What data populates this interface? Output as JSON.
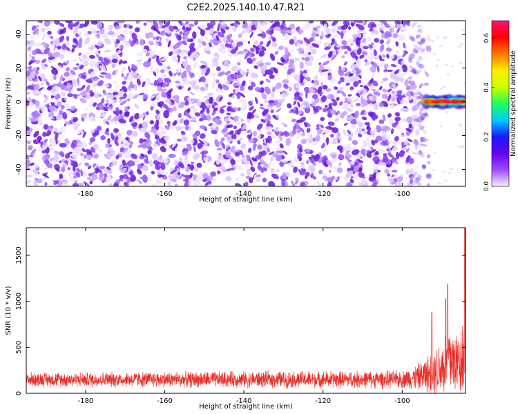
{
  "figure_title": "C2E2.2025.140.10.47.R21",
  "colors": {
    "snr_line": "#e8302a",
    "axis": "#000000"
  },
  "chart_data": [
    {
      "type": "heatmap",
      "xlabel": "Height of straight line (km)",
      "ylabel": "Frequency (Hz)",
      "xlim": [
        -195,
        -84
      ],
      "ylim": [
        -50,
        48
      ],
      "x_ticks": [
        -180,
        -160,
        -140,
        -120,
        -100
      ],
      "y_ticks": [
        -40,
        -20,
        0,
        20,
        40
      ],
      "colorbar": {
        "label": "Normalized spectral amplitude",
        "range": [
          0.0,
          0.67
        ],
        "ticks": [
          0.0,
          0.2,
          0.4,
          0.6
        ],
        "tick_labels": [
          "0.0",
          "0.2",
          "0.4",
          "0.6"
        ],
        "colormap": [
          "#f4efff",
          "#9a4cff",
          "#6600ee",
          "#1a1aff",
          "#00ccff",
          "#22ff55",
          "#ccff00",
          "#ffee00",
          "#ff7700",
          "#ff0000",
          "#ff1177"
        ]
      },
      "noise_region": {
        "x_range": [
          -195,
          -95
        ],
        "amplitude_range": [
          0.0,
          0.12
        ]
      },
      "signal": {
        "x_range": [
          -95,
          -84
        ],
        "frequency_hz": 0,
        "peak_amplitude": 0.67
      }
    },
    {
      "type": "line",
      "xlabel": "Height of straight line (km)",
      "ylabel": "SNR (10 * v/v)",
      "xlim": [
        -195,
        -84
      ],
      "ylim": [
        0,
        1800
      ],
      "x_ticks": [
        -180,
        -160,
        -140,
        -120,
        -100
      ],
      "y_ticks": [
        0,
        500,
        1000,
        1500
      ],
      "series": [
        {
          "color": "#e8302a",
          "x_breakpoints": [
            -195,
            -100,
            -96,
            -92,
            -89,
            -88,
            -86,
            -84
          ],
          "baseline": [
            150,
            150,
            180,
            230,
            320,
            380,
            330,
            450
          ],
          "spread": [
            90,
            110,
            160,
            280,
            450,
            520,
            400,
            600
          ],
          "peaks": [
            [
              -92.5,
              880
            ],
            [
              -89,
              1030
            ],
            [
              -88.5,
              1190
            ],
            [
              -84.2,
              1800
            ]
          ]
        }
      ]
    }
  ]
}
